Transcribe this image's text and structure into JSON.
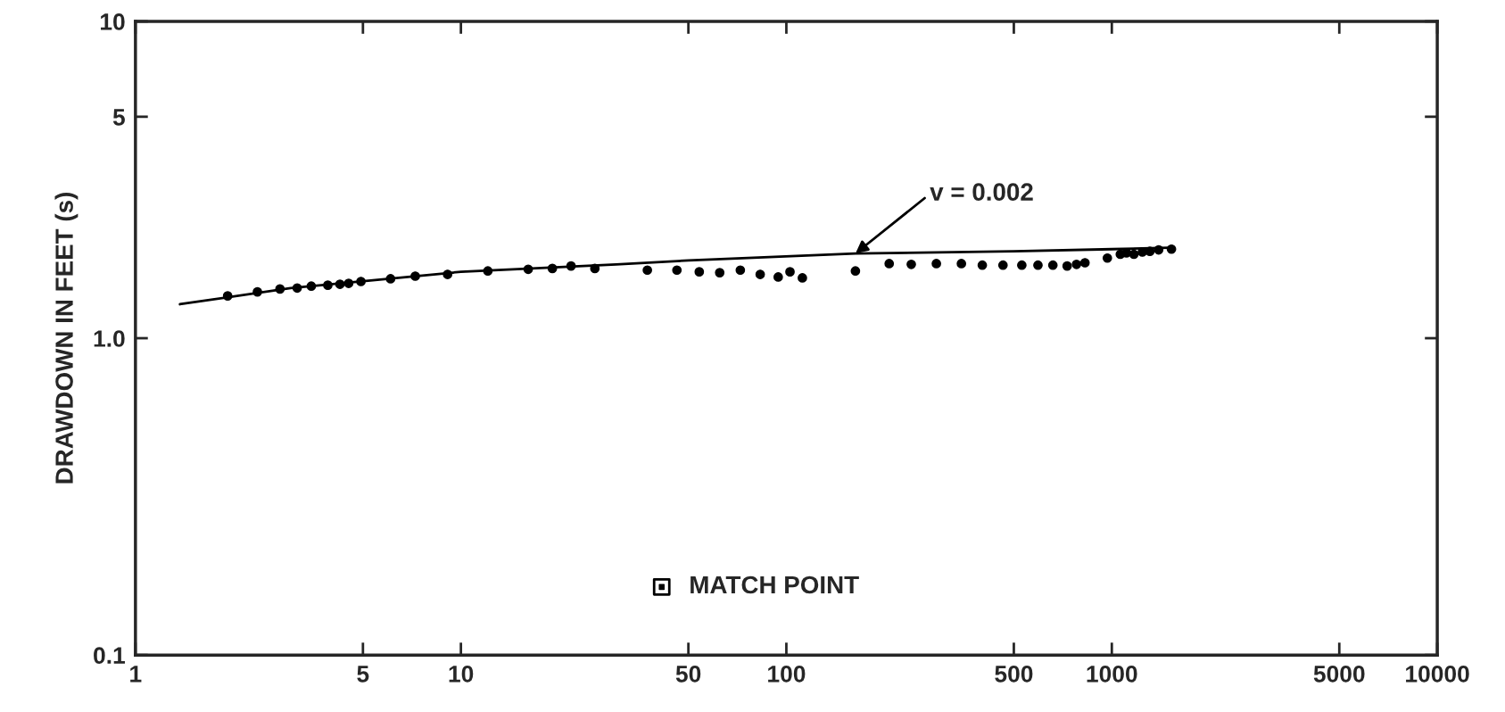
{
  "chart_data": {
    "type": "scatter",
    "ylabel": "DRAWDOWN IN FEET (s)",
    "log": "xy",
    "grid": false,
    "xlim": [
      1,
      10000
    ],
    "ylim": [
      0.1,
      10
    ],
    "xticks": [
      1,
      5,
      10,
      50,
      100,
      500,
      1000,
      5000,
      10000
    ],
    "yticks": [
      0.1,
      {
        "value": 1,
        "label": "1.0"
      },
      5,
      10
    ],
    "annotations": [
      {
        "text": "v = 0.002",
        "x": 163,
        "y": 1.85
      }
    ],
    "series": [
      {
        "marker": "circle",
        "color": "#000000",
        "x": [
          1.92,
          2.37,
          2.78,
          3.14,
          3.47,
          3.9,
          4.25,
          4.52,
          4.93,
          6.08,
          7.24,
          9.1,
          12.1,
          16.1,
          19.1,
          21.8,
          25.8,
          37.4,
          46.1,
          54.0,
          62.4,
          72.2,
          83.1,
          94.4,
          102.6,
          112,
          163,
          207,
          242,
          289,
          345,
          400,
          463,
          529,
          593,
          659,
          729,
          779,
          827,
          969,
          1062,
          1109,
          1169,
          1241,
          1309,
          1393,
          1525
        ],
        "values": [
          1.36,
          1.4,
          1.43,
          1.44,
          1.46,
          1.47,
          1.48,
          1.49,
          1.51,
          1.54,
          1.57,
          1.59,
          1.63,
          1.65,
          1.66,
          1.69,
          1.66,
          1.64,
          1.64,
          1.62,
          1.61,
          1.64,
          1.59,
          1.56,
          1.62,
          1.55,
          1.63,
          1.72,
          1.71,
          1.72,
          1.72,
          1.7,
          1.7,
          1.7,
          1.7,
          1.7,
          1.69,
          1.71,
          1.73,
          1.79,
          1.84,
          1.86,
          1.84,
          1.87,
          1.88,
          1.9,
          1.91
        ]
      },
      {
        "type": "line",
        "marker": "none",
        "line_style": "solid",
        "color": "#000000",
        "x": [
          1.37,
          3,
          10,
          30,
          50,
          163,
          500,
          1000,
          1500
        ],
        "values": [
          1.28,
          1.44,
          1.62,
          1.71,
          1.76,
          1.85,
          1.88,
          1.91,
          1.93
        ]
      },
      {
        "type": "scatter",
        "marker": "square",
        "color": "#000000",
        "name": "MATCH POINT",
        "x": [
          41.4
        ],
        "values": [
          0.164
        ]
      }
    ]
  }
}
